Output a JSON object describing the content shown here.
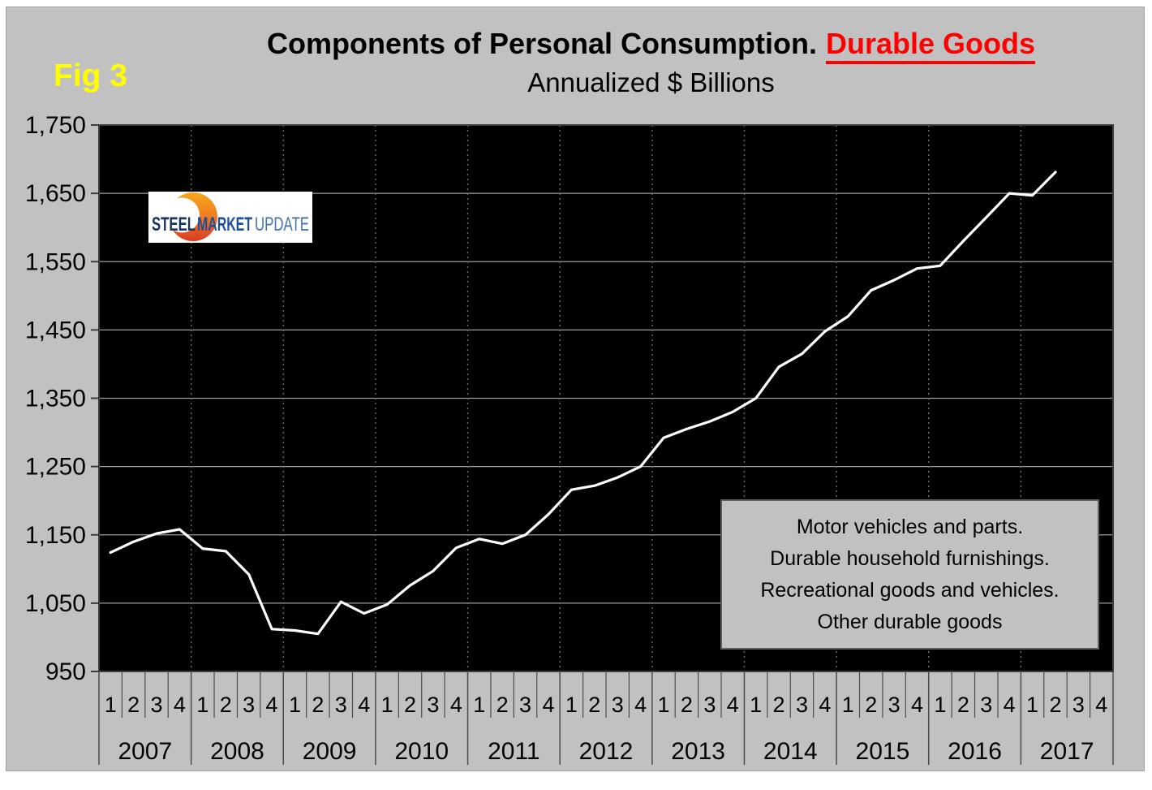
{
  "figure_label": "Fig 3",
  "title": {
    "main": "Components of Personal Consumption.",
    "highlight": "Durable Goods",
    "subtitle": "Annualized $ Billions"
  },
  "logo": {
    "word1": "STEEL",
    "word2": "MARKET",
    "word3": "UPDATE"
  },
  "legend": {
    "lines": [
      "Motor vehicles and parts.",
      "Durable household furnishings.",
      "Recreational goods and vehicles.",
      "Other durable goods"
    ]
  },
  "colors": {
    "panel_gray": "#c1c1c1",
    "plot_black": "#000000",
    "line_white": "#ffffff",
    "title_red": "#ff0000",
    "fig_yellow": "#ffff00",
    "h_gridline": "#9d9d9d",
    "v_gridline": "#6e6e6e",
    "axis_dark": "#3d3d3d",
    "logo_navy": "#16365f",
    "logo_blue": "#1d4f9b",
    "logo_light_blue": "#4272b0",
    "logo_orange_top": "#f9a61a",
    "logo_orange_bottom": "#d93b22"
  },
  "chart_data": {
    "type": "line",
    "title": "Components of Personal Consumption. Durable Goods",
    "subtitle": "Annualized $ Billions",
    "ylim": [
      950,
      1750
    ],
    "y_tick_interval": 100,
    "y_tick_labels": [
      "950",
      "1,050",
      "1,150",
      "1,250",
      "1,350",
      "1,450",
      "1,550",
      "1,650",
      "1,750"
    ],
    "x_years": [
      "2007",
      "2008",
      "2009",
      "2010",
      "2011",
      "2012",
      "2013",
      "2014",
      "2015",
      "2016",
      "2017"
    ],
    "quarters_per_year": [
      "1",
      "2",
      "3",
      "4"
    ],
    "grid": {
      "horizontal": "solid",
      "vertical": "dotted at year boundaries"
    },
    "legend_position": "inside lower right",
    "series": [
      {
        "name": "Durable goods",
        "color": "#ffffff",
        "start": "2007 Q1",
        "end": "2017 Q2",
        "values": [
          1124,
          1140,
          1152,
          1158,
          1130,
          1126,
          1092,
          1012,
          1010,
          1005,
          1052,
          1035,
          1048,
          1076,
          1097,
          1131,
          1144,
          1137,
          1150,
          1180,
          1216,
          1222,
          1234,
          1250,
          1292,
          1305,
          1316,
          1330,
          1350,
          1396,
          1415,
          1448,
          1470,
          1508,
          1523,
          1540,
          1544,
          1580,
          1615,
          1650,
          1647,
          1681
        ]
      }
    ]
  }
}
